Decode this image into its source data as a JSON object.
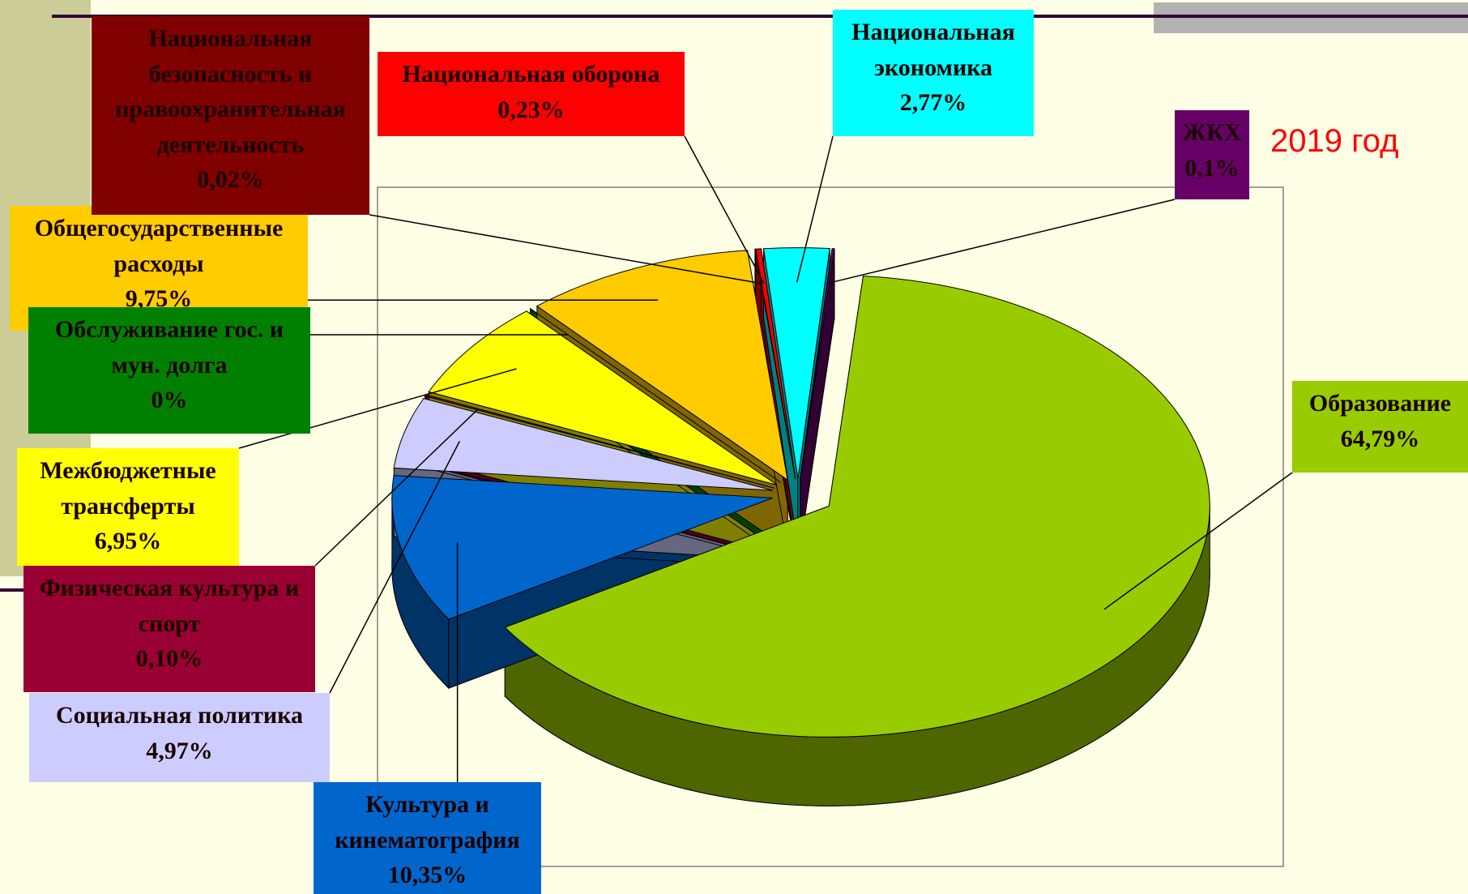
{
  "chart_data": {
    "type": "pie",
    "title": "2019 год",
    "categories": [
      "Образование",
      "Культура и кинематография",
      "Социальная политика",
      "Физическая культура и спорт",
      "Межбюджетные трансферты",
      "Обслуживание гос. и мун. долга",
      "Общегосударственные расходы",
      "Национальная безопасность и правоохранительная деятельность",
      "Национальная оборона",
      "Национальная экономика",
      "ЖКХ"
    ],
    "values": [
      64.79,
      10.35,
      4.97,
      0.1,
      6.95,
      0,
      9.75,
      0.02,
      0.23,
      2.77,
      0.1
    ],
    "value_labels": [
      "64,79%",
      "10,35%",
      "4,97%",
      "0,10%",
      "6,95%",
      "0%",
      "9,75%",
      "0,02%",
      "0,23%",
      "2,77%",
      "0,1%"
    ],
    "colors": [
      "#99cc00",
      "#0066cc",
      "#ccccff",
      "#990033",
      "#ffff00",
      "#008000",
      "#ffcc00",
      "#800000",
      "#ff0000",
      "#00ffff",
      "#660066"
    ]
  }
}
